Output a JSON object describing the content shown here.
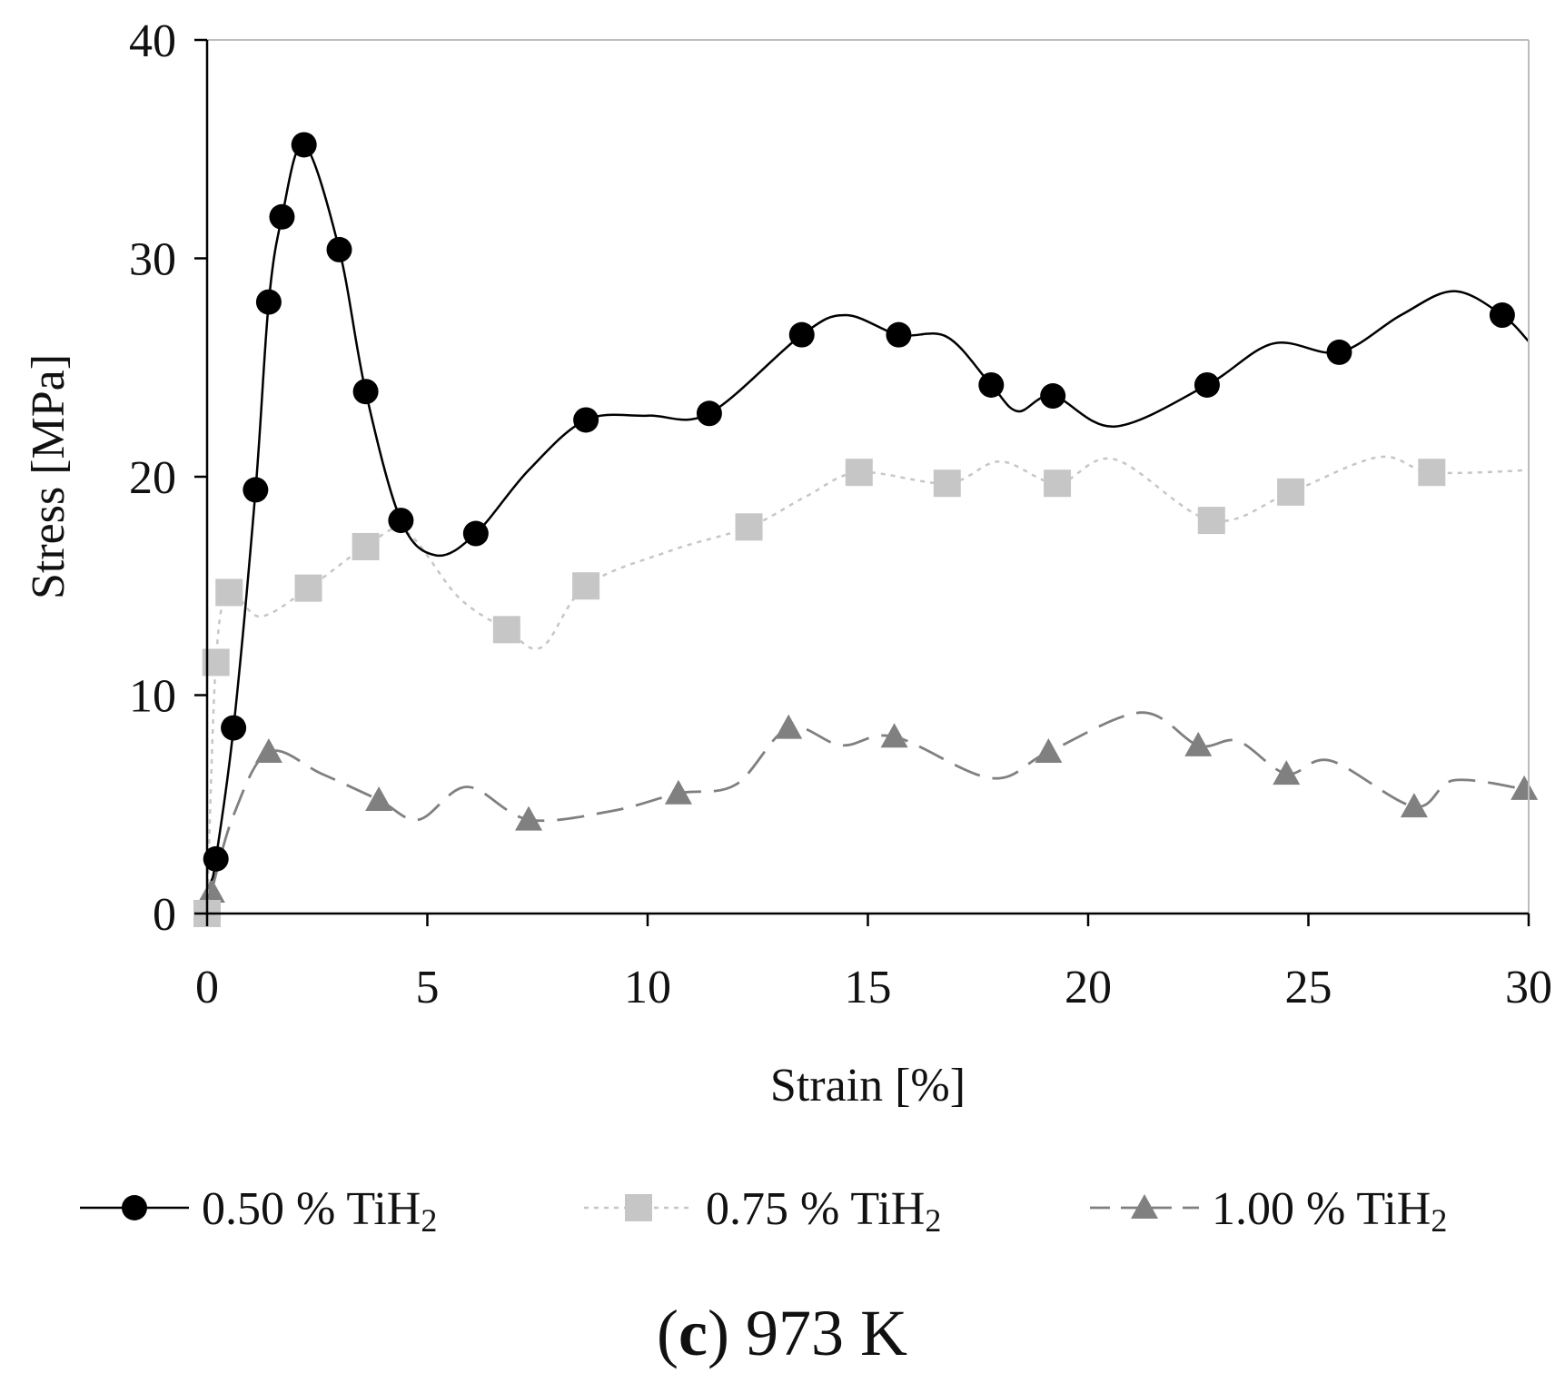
{
  "chart_data": {
    "type": "line",
    "xlabel": "Strain [%]",
    "ylabel": "Stress [MPa]",
    "xlim": [
      0,
      30
    ],
    "ylim": [
      0,
      40
    ],
    "xticks": [
      0,
      5,
      10,
      15,
      20,
      25,
      30
    ],
    "yticks": [
      0,
      10,
      20,
      30,
      40
    ],
    "xtick_labels": [
      "0",
      "5",
      "10",
      "15",
      "20",
      "25",
      "30"
    ],
    "ytick_labels": [
      "0",
      "10",
      "20",
      "30",
      "40"
    ],
    "grid": false,
    "legend_position": "bottom",
    "caption": {
      "letter": "c",
      "text": "973 K"
    },
    "series": [
      {
        "name": "0.50 % TiH",
        "name_subscript": "2",
        "color": "#000000",
        "marker": "circle",
        "line_style": "solid",
        "markers": [
          [
            0.2,
            2.5
          ],
          [
            0.6,
            8.5
          ],
          [
            1.1,
            19.4
          ],
          [
            1.4,
            28.0
          ],
          [
            1.7,
            31.9
          ],
          [
            2.2,
            35.2
          ],
          [
            3.0,
            30.4
          ],
          [
            3.6,
            23.9
          ],
          [
            4.4,
            18.0
          ],
          [
            6.1,
            17.4
          ],
          [
            8.6,
            22.6
          ],
          [
            11.4,
            22.9
          ],
          [
            13.5,
            26.5
          ],
          [
            15.7,
            26.5
          ],
          [
            17.8,
            24.2
          ],
          [
            19.2,
            23.7
          ],
          [
            22.7,
            24.2
          ],
          [
            25.7,
            25.7
          ],
          [
            29.4,
            27.4
          ]
        ],
        "curve": [
          [
            0.1,
            1.5
          ],
          [
            0.2,
            2.5
          ],
          [
            0.6,
            8.5
          ],
          [
            1.1,
            19.4
          ],
          [
            1.4,
            28.0
          ],
          [
            1.7,
            31.9
          ],
          [
            2.2,
            35.2
          ],
          [
            3.0,
            30.4
          ],
          [
            3.6,
            23.9
          ],
          [
            4.4,
            18.0
          ],
          [
            5.2,
            16.4
          ],
          [
            6.1,
            17.4
          ],
          [
            7.3,
            20.3
          ],
          [
            8.6,
            22.6
          ],
          [
            10.0,
            22.8
          ],
          [
            11.4,
            22.9
          ],
          [
            13.5,
            26.5
          ],
          [
            14.5,
            27.4
          ],
          [
            15.7,
            26.5
          ],
          [
            16.8,
            26.4
          ],
          [
            17.8,
            24.2
          ],
          [
            18.4,
            23.0
          ],
          [
            19.2,
            23.7
          ],
          [
            20.6,
            22.3
          ],
          [
            22.7,
            24.2
          ],
          [
            24.2,
            26.1
          ],
          [
            25.7,
            25.7
          ],
          [
            27.1,
            27.4
          ],
          [
            28.3,
            28.5
          ],
          [
            29.4,
            27.4
          ],
          [
            30.0,
            26.2
          ]
        ]
      },
      {
        "name": "0.75 % TiH",
        "name_subscript": "2",
        "color": "#c6c6c6",
        "marker": "square",
        "line_style": "dotted",
        "markers": [
          [
            0.0,
            0.0
          ],
          [
            0.2,
            11.5
          ],
          [
            0.5,
            14.7
          ],
          [
            2.3,
            14.9
          ],
          [
            3.6,
            16.8
          ],
          [
            6.8,
            13.0
          ],
          [
            8.6,
            15.0
          ],
          [
            12.3,
            17.7
          ],
          [
            14.8,
            20.2
          ],
          [
            16.8,
            19.7
          ],
          [
            19.3,
            19.7
          ],
          [
            22.8,
            18.0
          ],
          [
            24.6,
            19.3
          ],
          [
            27.8,
            20.2
          ]
        ],
        "curve": [
          [
            0.0,
            0.0
          ],
          [
            0.2,
            11.5
          ],
          [
            0.5,
            14.7
          ],
          [
            1.2,
            13.6
          ],
          [
            2.3,
            14.9
          ],
          [
            3.6,
            16.8
          ],
          [
            4.5,
            17.5
          ],
          [
            5.7,
            14.5
          ],
          [
            6.8,
            13.0
          ],
          [
            7.6,
            12.2
          ],
          [
            8.6,
            15.0
          ],
          [
            10.5,
            16.6
          ],
          [
            12.3,
            17.7
          ],
          [
            13.6,
            19.1
          ],
          [
            14.8,
            20.2
          ],
          [
            16.8,
            19.7
          ],
          [
            18.0,
            20.7
          ],
          [
            19.3,
            19.7
          ],
          [
            20.6,
            20.8
          ],
          [
            22.8,
            18.0
          ],
          [
            24.6,
            19.3
          ],
          [
            26.6,
            20.9
          ],
          [
            27.8,
            20.2
          ],
          [
            30.0,
            20.3
          ]
        ]
      },
      {
        "name": "1.00 % TiH",
        "name_subscript": "2",
        "color": "#808080",
        "marker": "triangle",
        "line_style": "dashed",
        "markers": [
          [
            0.1,
            1.0
          ],
          [
            1.4,
            7.4
          ],
          [
            3.9,
            5.2
          ],
          [
            7.3,
            4.3
          ],
          [
            10.7,
            5.5
          ],
          [
            13.2,
            8.5
          ],
          [
            15.6,
            8.1
          ],
          [
            19.1,
            7.4
          ],
          [
            22.5,
            7.7
          ],
          [
            24.5,
            6.4
          ],
          [
            27.4,
            4.9
          ],
          [
            29.9,
            5.7
          ]
        ],
        "curve": [
          [
            0.1,
            1.0
          ],
          [
            0.6,
            4.5
          ],
          [
            1.4,
            7.4
          ],
          [
            2.6,
            6.4
          ],
          [
            3.9,
            5.2
          ],
          [
            4.8,
            4.3
          ],
          [
            5.9,
            5.8
          ],
          [
            7.3,
            4.3
          ],
          [
            9.2,
            4.7
          ],
          [
            10.7,
            5.5
          ],
          [
            12.0,
            5.9
          ],
          [
            13.2,
            8.5
          ],
          [
            14.4,
            7.7
          ],
          [
            15.6,
            8.1
          ],
          [
            17.8,
            6.2
          ],
          [
            19.1,
            7.4
          ],
          [
            21.2,
            9.2
          ],
          [
            22.5,
            7.7
          ],
          [
            23.4,
            7.9
          ],
          [
            24.5,
            6.4
          ],
          [
            25.5,
            7.0
          ],
          [
            27.4,
            4.9
          ],
          [
            28.3,
            6.1
          ],
          [
            29.9,
            5.7
          ]
        ]
      }
    ]
  }
}
